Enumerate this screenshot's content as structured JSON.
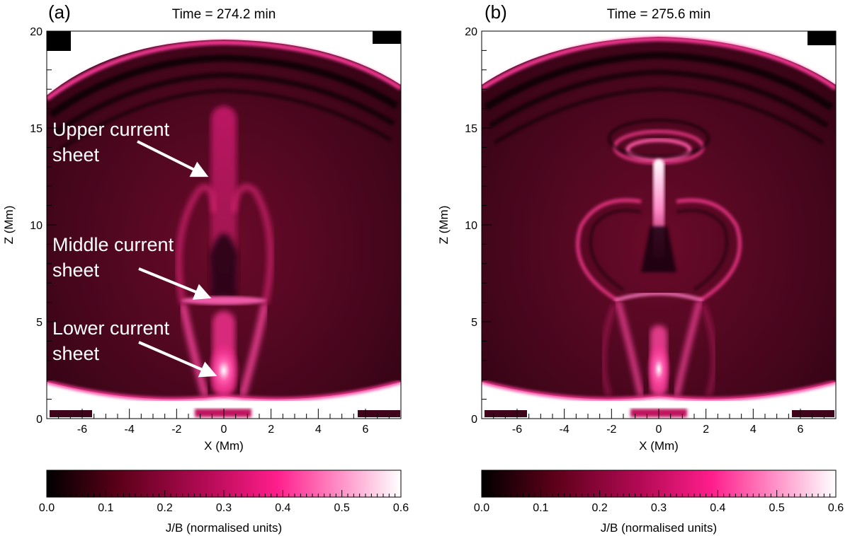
{
  "chart_data": [
    {
      "type": "heatmap",
      "panel_label": "(a)",
      "title": "Time = 274.2 min",
      "xlabel": "X (Mm)",
      "ylabel": "Z (Mm)",
      "xlim": [
        -7.5,
        7.5
      ],
      "ylim": [
        0,
        20
      ],
      "x_ticks": [
        -6,
        -4,
        -2,
        0,
        2,
        4,
        6
      ],
      "y_ticks": [
        0,
        5,
        10,
        15,
        20
      ],
      "colorbar": {
        "label": "J/B (normalised units)",
        "range": [
          0.0,
          0.6
        ],
        "ticks": [
          "0.0",
          "0.1",
          "0.2",
          "0.3",
          "0.4",
          "0.5",
          "0.6"
        ],
        "colors": [
          "#000000",
          "#5a0018",
          "#b40a55",
          "#ff1e8c",
          "#ffffff"
        ]
      },
      "annotations": [
        {
          "text": "Upper current sheet",
          "lines": [
            "Upper current",
            "sheet"
          ],
          "x": 0,
          "z": 12.3
        },
        {
          "text": "Middle current sheet",
          "lines": [
            "Middle current",
            "sheet"
          ],
          "x": 0,
          "z": 5.9
        },
        {
          "text": "Lower current sheet",
          "lines": [
            "Lower current",
            "sheet"
          ],
          "x": 0,
          "z": 1.9
        }
      ],
      "features": [
        {
          "kind": "outer_front_arc",
          "z_top": 20,
          "z_side": 1.5
        },
        {
          "kind": "vertical_sheet",
          "x": 0,
          "z_from": 7,
          "z_to": 16,
          "intensity": 0.28
        },
        {
          "kind": "horizontal_sheet",
          "x_from": -1.7,
          "x_to": 1.7,
          "z": 6.1,
          "intensity": 0.4
        },
        {
          "kind": "bright_spot",
          "x": 0,
          "z": 2.2,
          "intensity": 0.6
        }
      ]
    },
    {
      "type": "heatmap",
      "panel_label": "(b)",
      "title": "Time = 275.6 min",
      "xlabel": "X (Mm)",
      "ylabel": "Z (Mm)",
      "xlim": [
        -7.5,
        7.5
      ],
      "ylim": [
        0,
        20
      ],
      "x_ticks": [
        -6,
        -4,
        -2,
        0,
        2,
        4,
        6
      ],
      "y_ticks": [
        0,
        5,
        10,
        15,
        20
      ],
      "colorbar": {
        "label": "J/B (normalised units)",
        "range": [
          0.0,
          0.6
        ],
        "ticks": [
          "0.0",
          "0.1",
          "0.2",
          "0.3",
          "0.4",
          "0.5",
          "0.6"
        ],
        "colors": [
          "#000000",
          "#5a0018",
          "#b40a55",
          "#ff1e8c",
          "#ffffff"
        ]
      },
      "annotations": [],
      "features": [
        {
          "kind": "outer_front_arc",
          "z_top": 20,
          "z_side": 1.5
        },
        {
          "kind": "plasmoid_rings",
          "x": 0,
          "z": 13.2
        },
        {
          "kind": "vertical_sheet",
          "x": 0,
          "z_from": 9.5,
          "z_to": 13,
          "intensity": 0.55
        },
        {
          "kind": "horizontal_sheet",
          "x_from": -1.6,
          "x_to": 1.6,
          "z": 6.2,
          "intensity": 0.4
        },
        {
          "kind": "bright_spot",
          "x": 0,
          "z": 2.2,
          "intensity": 0.6
        }
      ]
    }
  ]
}
